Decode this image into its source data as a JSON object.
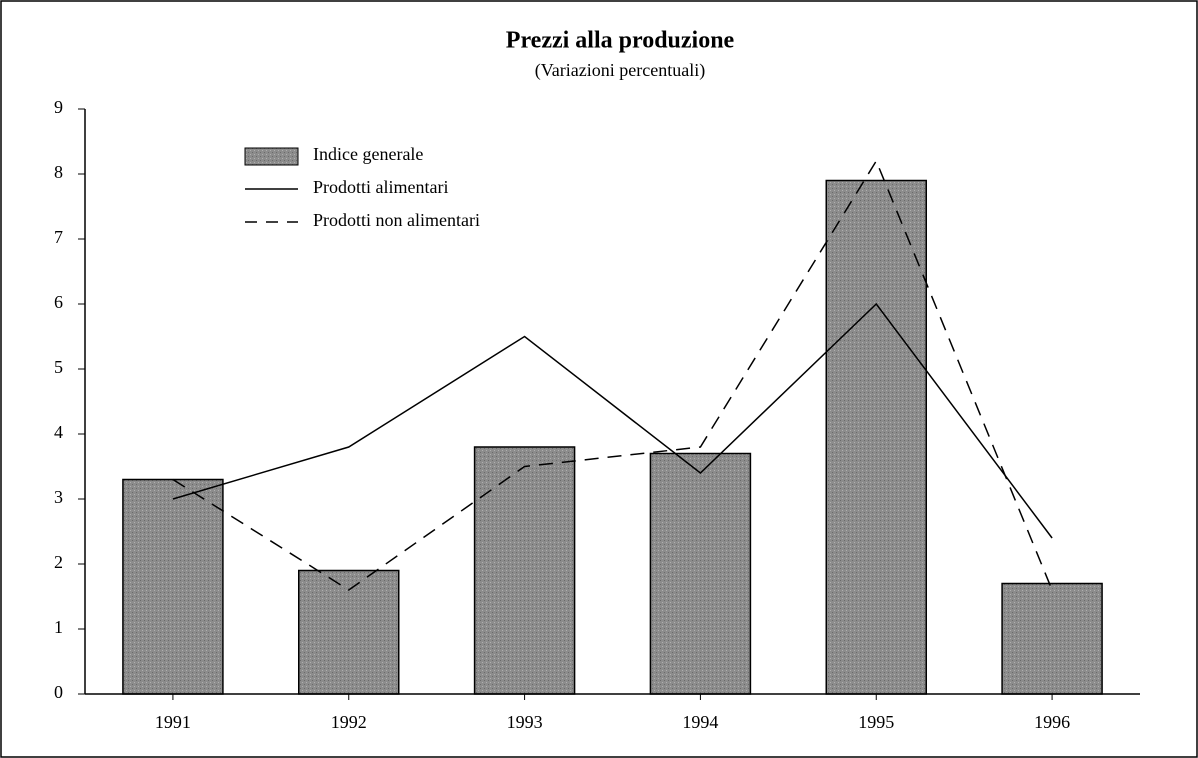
{
  "chart_data": {
    "type": "bar",
    "title": "Prezzi alla produzione",
    "subtitle": "(Variazioni percentuali)",
    "categories": [
      "1991",
      "1992",
      "1993",
      "1994",
      "1995",
      "1996"
    ],
    "series": [
      {
        "name": "Indice generale",
        "kind": "bar",
        "color": "#8c8c8c",
        "values": [
          3.3,
          1.9,
          3.8,
          3.7,
          7.9,
          1.7
        ]
      },
      {
        "name": "Prodotti alimentari",
        "kind": "line",
        "color": "#000000",
        "values": [
          3.0,
          3.8,
          5.5,
          3.4,
          6.0,
          2.4
        ]
      },
      {
        "name": "Prodotti non alimentari",
        "kind": "dashed",
        "color": "#000000",
        "values": [
          3.3,
          1.6,
          3.5,
          3.8,
          8.2,
          1.6
        ]
      }
    ],
    "ylim": [
      0,
      9
    ],
    "yticks": [
      0,
      1,
      2,
      3,
      4,
      5,
      6,
      7,
      8,
      9
    ],
    "legend": "top-left"
  }
}
